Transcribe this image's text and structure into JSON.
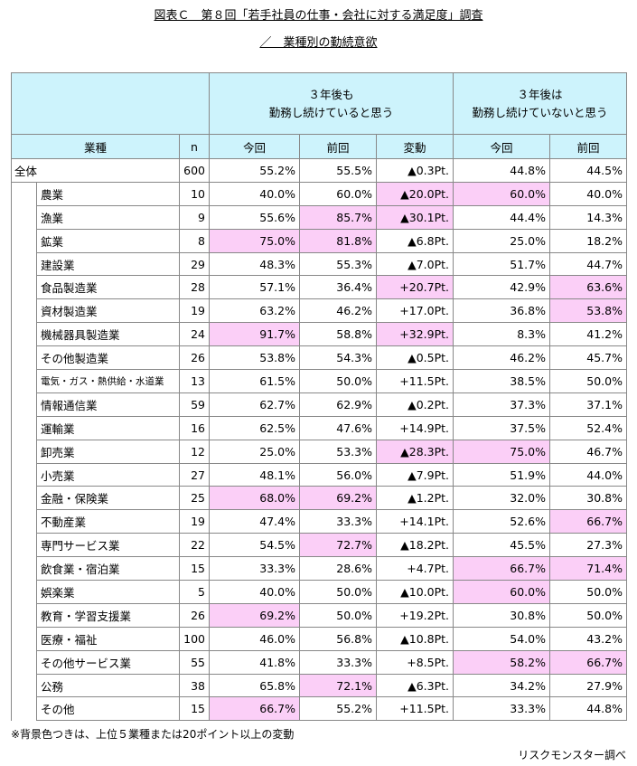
{
  "header": {
    "title": "図表Ｃ　第８回「若手社員の仕事・会社に対する満足度」調査",
    "subtitle": "／　業種別の勤続意欲"
  },
  "table": {
    "header_color": "#cdf3fc",
    "highlight_color": "#fbcff7",
    "group_headers": [
      {
        "lines": [
          "３年後も",
          "勤務し続けていると思う"
        ]
      },
      {
        "lines": [
          "３年後は",
          "勤務し続けていないと思う"
        ]
      }
    ],
    "columns": [
      "業種",
      "n",
      "今回",
      "前回",
      "変動",
      "今回",
      "前回"
    ],
    "rows": [
      {
        "label": "全体",
        "n": 600,
        "values": [
          "55.2%",
          "55.5%",
          "▲0.3Pt.",
          "44.8%",
          "44.5%"
        ],
        "highlight": []
      },
      {
        "label": "農業",
        "n": 10,
        "values": [
          "40.0%",
          "60.0%",
          "▲20.0Pt.",
          "60.0%",
          "40.0%"
        ],
        "highlight": [
          2,
          3
        ]
      },
      {
        "label": "漁業",
        "n": 9,
        "values": [
          "55.6%",
          "85.7%",
          "▲30.1Pt.",
          "44.4%",
          "14.3%"
        ],
        "highlight": [
          1,
          2
        ]
      },
      {
        "label": "鉱業",
        "n": 8,
        "values": [
          "75.0%",
          "81.8%",
          "▲6.8Pt.",
          "25.0%",
          "18.2%"
        ],
        "highlight": [
          0,
          1
        ]
      },
      {
        "label": "建設業",
        "n": 29,
        "values": [
          "48.3%",
          "55.3%",
          "▲7.0Pt.",
          "51.7%",
          "44.7%"
        ],
        "highlight": []
      },
      {
        "label": "食品製造業",
        "n": 28,
        "values": [
          "57.1%",
          "36.4%",
          "+20.7Pt.",
          "42.9%",
          "63.6%"
        ],
        "highlight": [
          2,
          4
        ]
      },
      {
        "label": "資材製造業",
        "n": 19,
        "values": [
          "63.2%",
          "46.2%",
          "+17.0Pt.",
          "36.8%",
          "53.8%"
        ],
        "highlight": [
          4
        ]
      },
      {
        "label": "機械器具製造業",
        "n": 24,
        "values": [
          "91.7%",
          "58.8%",
          "+32.9Pt.",
          "8.3%",
          "41.2%"
        ],
        "highlight": [
          0,
          2
        ]
      },
      {
        "label": "その他製造業",
        "n": 26,
        "values": [
          "53.8%",
          "54.3%",
          "▲0.5Pt.",
          "46.2%",
          "45.7%"
        ],
        "highlight": []
      },
      {
        "label": "電気・ガス・熱供給・水道業",
        "n": 13,
        "values": [
          "61.5%",
          "50.0%",
          "+11.5Pt.",
          "38.5%",
          "50.0%"
        ],
        "highlight": []
      },
      {
        "label": "情報通信業",
        "n": 59,
        "values": [
          "62.7%",
          "62.9%",
          "▲0.2Pt.",
          "37.3%",
          "37.1%"
        ],
        "highlight": []
      },
      {
        "label": "運輸業",
        "n": 16,
        "values": [
          "62.5%",
          "47.6%",
          "+14.9Pt.",
          "37.5%",
          "52.4%"
        ],
        "highlight": []
      },
      {
        "label": "卸売業",
        "n": 12,
        "values": [
          "25.0%",
          "53.3%",
          "▲28.3Pt.",
          "75.0%",
          "46.7%"
        ],
        "highlight": [
          2,
          3
        ]
      },
      {
        "label": "小売業",
        "n": 27,
        "values": [
          "48.1%",
          "56.0%",
          "▲7.9Pt.",
          "51.9%",
          "44.0%"
        ],
        "highlight": []
      },
      {
        "label": "金融・保険業",
        "n": 25,
        "values": [
          "68.0%",
          "69.2%",
          "▲1.2Pt.",
          "32.0%",
          "30.8%"
        ],
        "highlight": [
          0,
          1
        ]
      },
      {
        "label": "不動産業",
        "n": 19,
        "values": [
          "47.4%",
          "33.3%",
          "+14.1Pt.",
          "52.6%",
          "66.7%"
        ],
        "highlight": [
          4
        ]
      },
      {
        "label": "専門サービス業",
        "n": 22,
        "values": [
          "54.5%",
          "72.7%",
          "▲18.2Pt.",
          "45.5%",
          "27.3%"
        ],
        "highlight": [
          1
        ]
      },
      {
        "label": "飲食業・宿泊業",
        "n": 15,
        "values": [
          "33.3%",
          "28.6%",
          "+4.7Pt.",
          "66.7%",
          "71.4%"
        ],
        "highlight": [
          3,
          4
        ]
      },
      {
        "label": "娯楽業",
        "n": 5,
        "values": [
          "40.0%",
          "50.0%",
          "▲10.0Pt.",
          "60.0%",
          "50.0%"
        ],
        "highlight": [
          3
        ]
      },
      {
        "label": "教育・学習支援業",
        "n": 26,
        "values": [
          "69.2%",
          "50.0%",
          "+19.2Pt.",
          "30.8%",
          "50.0%"
        ],
        "highlight": [
          0
        ]
      },
      {
        "label": "医療・福祉",
        "n": 100,
        "values": [
          "46.0%",
          "56.8%",
          "▲10.8Pt.",
          "54.0%",
          "43.2%"
        ],
        "highlight": []
      },
      {
        "label": "その他サービス業",
        "n": 55,
        "values": [
          "41.8%",
          "33.3%",
          "+8.5Pt.",
          "58.2%",
          "66.7%"
        ],
        "highlight": [
          3,
          4
        ]
      },
      {
        "label": "公務",
        "n": 38,
        "values": [
          "65.8%",
          "72.1%",
          "▲6.3Pt.",
          "34.2%",
          "27.9%"
        ],
        "highlight": [
          1
        ]
      },
      {
        "label": "その他",
        "n": 15,
        "values": [
          "66.7%",
          "55.2%",
          "+11.5Pt.",
          "33.3%",
          "44.8%"
        ],
        "highlight": [
          0
        ]
      }
    ]
  },
  "footer": {
    "note": "※背景色つきは、上位５業種または20ポイント以上の変動",
    "source": "リスクモンスター調べ"
  }
}
